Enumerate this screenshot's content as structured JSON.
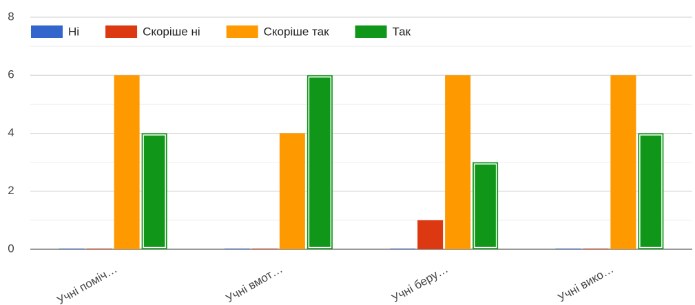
{
  "chart_data": {
    "type": "bar",
    "categories": [
      "Учні поміч…",
      "Учні вмот…",
      "Учні беру…",
      "Учні вико…"
    ],
    "series": [
      {
        "name": "Ні",
        "color": "#3366cc",
        "values": [
          0,
          0,
          0,
          0
        ]
      },
      {
        "name": "Скоріше ні",
        "color": "#dc3912",
        "values": [
          0,
          0,
          1,
          0
        ]
      },
      {
        "name": "Скоріше так",
        "color": "#ff9900",
        "values": [
          6,
          4,
          6,
          6
        ]
      },
      {
        "name": "Так",
        "color": "#109618",
        "values": [
          4,
          6,
          3,
          4
        ]
      }
    ],
    "ylim": [
      0,
      8
    ],
    "yticks": [
      0,
      2,
      4,
      6,
      8
    ],
    "grid": true,
    "legend": "top"
  }
}
